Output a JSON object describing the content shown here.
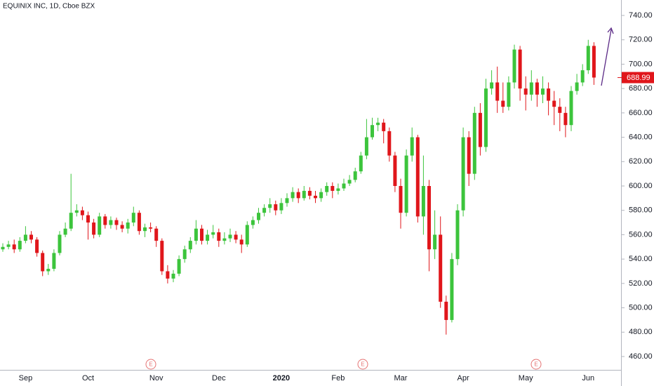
{
  "chart_data": {
    "type": "candlestick",
    "title": "EQUINIX INC, 1D, Cboe BZX",
    "categories": [
      null,
      null,
      null,
      null,
      "Sep",
      null,
      null,
      null,
      null,
      null,
      null,
      null,
      null,
      null,
      null,
      "Oct",
      null,
      null,
      null,
      null,
      null,
      null,
      null,
      null,
      null,
      null,
      null,
      "Nov",
      null,
      null,
      null,
      null,
      null,
      null,
      null,
      null,
      null,
      null,
      "Dec",
      null,
      null,
      null,
      null,
      null,
      null,
      null,
      null,
      null,
      null,
      "2020",
      null,
      null,
      null,
      null,
      null,
      null,
      null,
      null,
      null,
      "Feb",
      null,
      null,
      null,
      null,
      null,
      null,
      null,
      null,
      null,
      null,
      "Mar",
      null,
      null,
      null,
      null,
      null,
      null,
      null,
      null,
      null,
      null,
      "Apr",
      null,
      null,
      null,
      null,
      null,
      null,
      null,
      null,
      null,
      null,
      "May",
      null,
      null,
      null,
      null,
      null,
      null,
      null,
      null,
      null,
      null,
      "Jun",
      null
    ],
    "open": [
      548,
      550,
      552,
      548,
      555,
      560,
      556,
      545,
      530,
      532,
      545,
      560,
      565,
      578,
      580,
      576,
      570,
      560,
      575,
      568,
      572,
      568,
      565,
      570,
      578,
      563,
      566,
      565,
      555,
      530,
      524,
      528,
      540,
      548,
      555,
      565,
      555,
      560,
      562,
      555,
      557,
      560,
      556,
      552,
      568,
      572,
      578,
      582,
      585,
      580,
      586,
      590,
      595,
      590,
      596,
      592,
      590,
      595,
      600,
      596,
      598,
      602,
      605,
      612,
      625,
      640,
      650,
      652,
      645,
      625,
      600,
      578,
      625,
      640,
      575,
      600,
      548,
      560,
      505,
      490,
      540,
      580,
      640,
      610,
      660,
      632,
      680,
      685,
      670,
      665,
      685,
      712,
      680,
      675,
      685,
      675,
      680,
      670,
      665,
      660,
      650,
      678,
      685,
      695,
      715
    ],
    "high": [
      553,
      555,
      556,
      558,
      567,
      563,
      558,
      547,
      536,
      548,
      563,
      570,
      610,
      585,
      583,
      579,
      573,
      578,
      577,
      575,
      574,
      571,
      573,
      583,
      580,
      569,
      570,
      567,
      557,
      535,
      531,
      543,
      551,
      558,
      572,
      568,
      564,
      568,
      565,
      562,
      565,
      563,
      560,
      571,
      575,
      582,
      585,
      590,
      588,
      590,
      594,
      599,
      598,
      600,
      599,
      596,
      598,
      603,
      603,
      602,
      606,
      609,
      615,
      628,
      655,
      656,
      656,
      655,
      648,
      628,
      606,
      630,
      648,
      642,
      625,
      605,
      580,
      575,
      510,
      545,
      585,
      648,
      645,
      665,
      668,
      688,
      695,
      698,
      685,
      690,
      716,
      715,
      690,
      695,
      688,
      690,
      685,
      678,
      672,
      665,
      682,
      692,
      700,
      720,
      718
    ],
    "low": [
      546,
      548,
      545,
      546,
      553,
      553,
      542,
      526,
      527,
      530,
      543,
      558,
      563,
      575,
      572,
      556,
      557,
      558,
      565,
      565,
      564,
      562,
      561,
      567,
      560,
      558,
      562,
      550,
      527,
      520,
      521,
      526,
      537,
      545,
      552,
      552,
      552,
      557,
      550,
      552,
      554,
      553,
      545,
      550,
      565,
      569,
      575,
      578,
      576,
      577,
      583,
      587,
      586,
      588,
      589,
      586,
      587,
      592,
      590,
      593,
      596,
      600,
      603,
      610,
      622,
      638,
      645,
      635,
      620,
      595,
      565,
      575,
      620,
      570,
      560,
      530,
      540,
      500,
      478,
      488,
      535,
      575,
      600,
      605,
      625,
      628,
      675,
      660,
      660,
      662,
      680,
      670,
      662,
      670,
      665,
      668,
      658,
      650,
      645,
      640,
      645,
      675,
      682,
      692,
      683
    ],
    "close": [
      550,
      552,
      548,
      555,
      560,
      556,
      545,
      530,
      532,
      545,
      560,
      565,
      578,
      580,
      576,
      570,
      560,
      575,
      568,
      572,
      568,
      565,
      570,
      578,
      563,
      566,
      565,
      555,
      530,
      524,
      528,
      540,
      548,
      555,
      565,
      555,
      560,
      562,
      555,
      557,
      560,
      556,
      552,
      568,
      572,
      578,
      582,
      585,
      580,
      586,
      590,
      595,
      590,
      596,
      592,
      590,
      595,
      600,
      596,
      598,
      602,
      605,
      612,
      625,
      640,
      650,
      652,
      645,
      625,
      600,
      578,
      625,
      640,
      575,
      600,
      548,
      560,
      505,
      490,
      540,
      580,
      640,
      610,
      660,
      632,
      680,
      685,
      670,
      665,
      685,
      712,
      680,
      675,
      685,
      675,
      680,
      670,
      665,
      660,
      650,
      678,
      685,
      695,
      715,
      689
    ],
    "up_color": "#3cc43c",
    "down_color": "#e0161b",
    "ylim": [
      460,
      740
    ],
    "yticks": [
      {
        "value": 460,
        "label": "460.00"
      },
      {
        "value": 480,
        "label": "480.00"
      },
      {
        "value": 500,
        "label": "500.00"
      },
      {
        "value": 520,
        "label": "520.00"
      },
      {
        "value": 540,
        "label": "540.00"
      },
      {
        "value": 560,
        "label": "560.00"
      },
      {
        "value": 580,
        "label": "580.00"
      },
      {
        "value": 600,
        "label": "600.00"
      },
      {
        "value": 620,
        "label": "620.00"
      },
      {
        "value": 640,
        "label": "640.00"
      },
      {
        "value": 660,
        "label": "660.00"
      },
      {
        "value": 680,
        "label": "680.00"
      },
      {
        "value": 700,
        "label": "700.00"
      },
      {
        "value": 720,
        "label": "720.00"
      },
      {
        "value": 740,
        "label": "740.00"
      }
    ],
    "last_price": 688.99,
    "earnings_labels": [
      "E",
      "E",
      "E"
    ],
    "grid": false
  }
}
